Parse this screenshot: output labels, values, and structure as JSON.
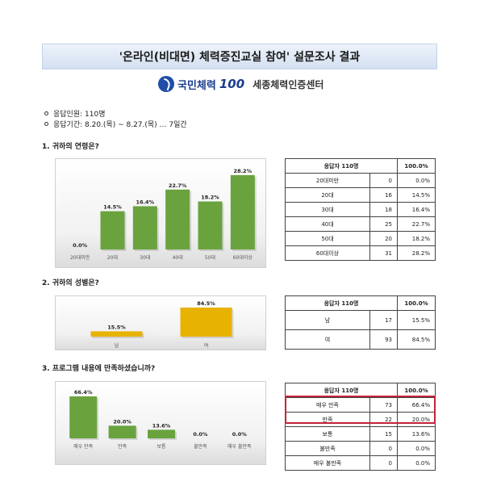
{
  "header": {
    "title": "'온라인(비대면) 체력증진교실 참여' 설문조사 결과",
    "logo_brand": "국민체력",
    "logo_number": "100",
    "logo_center": "세종체력인증센터"
  },
  "info": {
    "respondents": "응답인원: 110명",
    "period": "응답기간: 8.20.(목) ~ 8.27.(목) … 7일간"
  },
  "questions": [
    {
      "title": "1.  귀하의 연령은?"
    },
    {
      "title": "2.  귀하의 성별은?"
    },
    {
      "title": "3.  프로그램 내용에 만족하셨습니까?"
    }
  ],
  "tables": [
    {
      "header_label": "응답자 110명",
      "header_pct": "100.0%",
      "rows": [
        {
          "label": "20대미만",
          "count": "0",
          "pct": "0.0%"
        },
        {
          "label": "20대",
          "count": "16",
          "pct": "14.5%"
        },
        {
          "label": "30대",
          "count": "18",
          "pct": "16.4%"
        },
        {
          "label": "40대",
          "count": "25",
          "pct": "22.7%"
        },
        {
          "label": "50대",
          "count": "20",
          "pct": "18.2%"
        },
        {
          "label": "60대이상",
          "count": "31",
          "pct": "28.2%"
        }
      ]
    },
    {
      "header_label": "응답자 110명",
      "header_pct": "100.0%",
      "rows": [
        {
          "label": "남",
          "count": "17",
          "pct": "15.5%"
        },
        {
          "label": "여",
          "count": "93",
          "pct": "84.5%"
        }
      ]
    },
    {
      "header_label": "응답자 110명",
      "header_pct": "100.0%",
      "rows": [
        {
          "label": "매우 만족",
          "count": "73",
          "pct": "66.4%"
        },
        {
          "label": "만족",
          "count": "22",
          "pct": "20.0%"
        },
        {
          "label": "보통",
          "count": "15",
          "pct": "13.6%"
        },
        {
          "label": "불만족",
          "count": "0",
          "pct": "0.0%"
        },
        {
          "label": "매우 불만족",
          "count": "0",
          "pct": "0.0%"
        }
      ]
    }
  ],
  "colors": {
    "green_bar": "#6aa33e",
    "yellow_bar": "#e8b200",
    "highlight": "#c3243a"
  },
  "chart_data": [
    {
      "type": "bar",
      "categories": [
        "20대미만",
        "20대",
        "30대",
        "40대",
        "50대",
        "60대이상"
      ],
      "values": [
        0.0,
        14.5,
        16.4,
        22.7,
        18.2,
        28.2
      ],
      "value_labels": [
        "0.0%",
        "14.5%",
        "16.4%",
        "22.7%",
        "18.2%",
        "28.2%"
      ],
      "ylim": [
        0,
        30
      ],
      "color": "#6aa33e"
    },
    {
      "type": "bar",
      "categories": [
        "남",
        "여"
      ],
      "values": [
        15.5,
        84.5
      ],
      "value_labels": [
        "15.5%",
        "84.5%"
      ],
      "ylim": [
        0,
        84.5
      ],
      "color": "#e8b200"
    },
    {
      "type": "bar",
      "categories": [
        "매우 만족",
        "만족",
        "보통",
        "불만족",
        "매우 불만족"
      ],
      "values": [
        66.4,
        20.0,
        13.6,
        0.0,
        0.0
      ],
      "value_labels": [
        "66.4%",
        "20.0%",
        "13.6%",
        "0.0%",
        "0.0%"
      ],
      "ylim": [
        0,
        66.4
      ],
      "color": "#6aa33e"
    }
  ]
}
